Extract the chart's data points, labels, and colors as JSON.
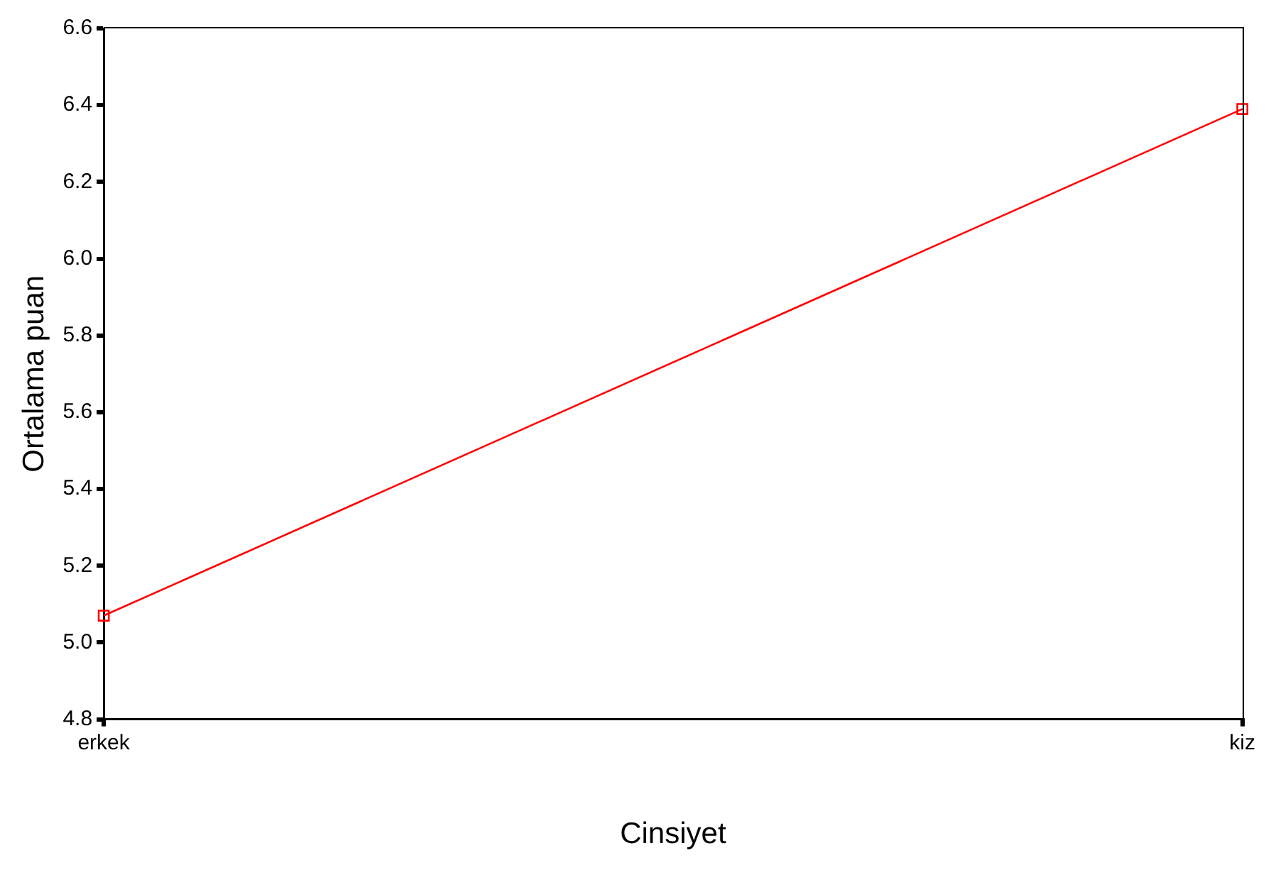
{
  "chart_data": {
    "type": "line",
    "xlabel": "Cinsiyet",
    "ylabel": "Ortalama puan",
    "categories": [
      "erkek",
      "kiz"
    ],
    "series": [
      {
        "color": "#ff0000",
        "values": [
          5.07,
          6.39
        ]
      }
    ],
    "ylim": [
      4.8,
      6.6
    ],
    "yticks": [
      4.8,
      {
        "value": 5,
        "label": "5.0"
      },
      5.2,
      5.4,
      5.6,
      5.8,
      {
        "value": 6,
        "label": "6.0"
      },
      6.2,
      6.4,
      6.6
    ],
    "legend": false,
    "marker": "square",
    "line_style": "solid"
  }
}
